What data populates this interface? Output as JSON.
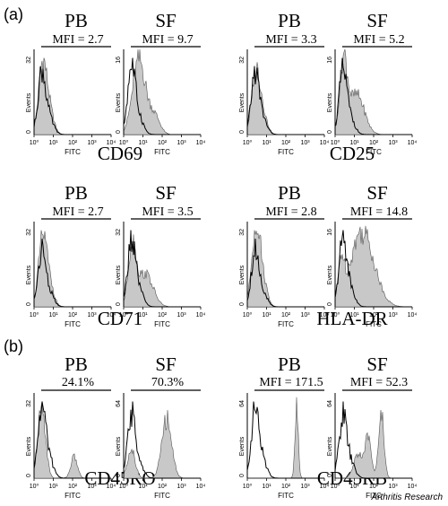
{
  "figure": {
    "credit": "Arthritis Research",
    "axis": {
      "xlabel": "FITC",
      "ylabel": "Events",
      "x_ticks": [
        "10⁰",
        "10¹",
        "10²",
        "10³",
        "10⁴"
      ]
    },
    "groups": [
      {
        "letter": "(a)",
        "rows": [
          {
            "markers": [
              "CD69",
              "CD25"
            ],
            "panels": [
              {
                "label": "PB",
                "stat": "MFI = 2.7",
                "ymax": "32",
                "peak": 0.9,
                "shape": "low"
              },
              {
                "label": "SF",
                "stat": "MFI = 9.7",
                "ymax": "16",
                "peak": 1.0,
                "shape": "broad"
              },
              {
                "label": "PB",
                "stat": "MFI = 3.3",
                "ymax": "32",
                "peak": 0.85,
                "shape": "low"
              },
              {
                "label": "SF",
                "stat": "MFI = 5.2",
                "ymax": "16",
                "peak": 1.0,
                "shape": "tail"
              }
            ]
          },
          {
            "markers": [
              "CD71",
              "HLA-DR"
            ],
            "panels": [
              {
                "label": "PB",
                "stat": "MFI = 2.7",
                "ymax": "32",
                "peak": 0.9,
                "shape": "low"
              },
              {
                "label": "SF",
                "stat": "MFI = 3.5",
                "ymax": "32",
                "peak": 0.85,
                "shape": "tail"
              },
              {
                "label": "PB",
                "stat": "MFI = 2.8",
                "ymax": "32",
                "peak": 0.9,
                "shape": "low"
              },
              {
                "label": "SF",
                "stat": "MFI = 14.8",
                "ymax": "16",
                "peak": 0.95,
                "shape": "wide"
              }
            ]
          }
        ]
      },
      {
        "letter": "(b)",
        "rows": [
          {
            "markers": [
              "CD45RO",
              "CD45RB"
            ],
            "panels": [
              {
                "label": "PB",
                "stat": "24.1%",
                "ymax": "32",
                "peak": 0.9,
                "shape": "bimodal_low"
              },
              {
                "label": "SF",
                "stat": "70.3%",
                "ymax": "64",
                "peak": 0.8,
                "shape": "bimodal_high"
              },
              {
                "label": "PB",
                "stat": "MFI = 171.5",
                "ymax": "64",
                "peak": 0.95,
                "shape": "spike"
              },
              {
                "label": "SF",
                "stat": "MFI = 52.3",
                "ymax": "64",
                "peak": 0.8,
                "shape": "multi"
              }
            ]
          }
        ]
      }
    ]
  }
}
